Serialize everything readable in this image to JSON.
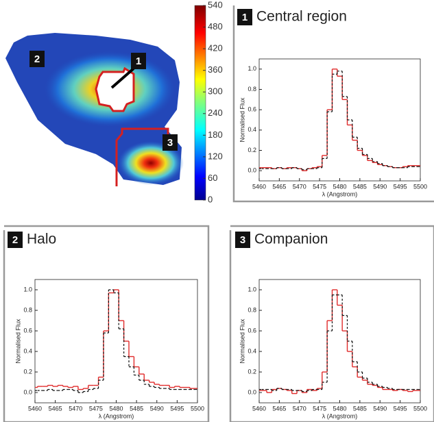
{
  "chart_data": [
    {
      "type": "heatmap",
      "colormap": "jet",
      "colorbar": {
        "lim": [
          0,
          540
        ],
        "ticks": [
          0,
          60,
          120,
          180,
          240,
          300,
          360,
          420,
          480,
          540
        ]
      },
      "region_labels": [
        "1",
        "2",
        "3"
      ],
      "outline_color": "#d42020"
    },
    {
      "type": "step",
      "panel": "1",
      "title": "Central region",
      "xlabel": "λ (Angstrom)",
      "ylabel": "Normalised Flux",
      "x": [
        5460,
        5461.25,
        5462.5,
        5463.75,
        5465,
        5466.25,
        5467.5,
        5468.75,
        5470,
        5471.25,
        5472.5,
        5473.75,
        5475,
        5476.25,
        5477.5,
        5478.75,
        5480,
        5481.25,
        5482.5,
        5483.75,
        5485,
        5486.25,
        5487.5,
        5488.75,
        5490,
        5491.25,
        5492.5,
        5493.75,
        5495,
        5496.25,
        5497.5,
        5498.75,
        5500
      ],
      "series": [
        {
          "color": "#e02a2a",
          "linestyle": "solid",
          "values": [
            0.03,
            0.03,
            0.03,
            0.02,
            0.03,
            0.02,
            0.03,
            0.03,
            0.02,
            0.0,
            0.02,
            0.03,
            0.04,
            0.15,
            0.6,
            1.0,
            0.93,
            0.7,
            0.45,
            0.3,
            0.2,
            0.15,
            0.1,
            0.08,
            0.06,
            0.05,
            0.04,
            0.03,
            0.03,
            0.04,
            0.05,
            0.05,
            0.05
          ]
        },
        {
          "color": "#111111",
          "linestyle": "dashed",
          "values": [
            0.02,
            0.02,
            0.02,
            0.02,
            0.03,
            0.02,
            0.02,
            0.03,
            0.02,
            0.01,
            0.02,
            0.02,
            0.03,
            0.12,
            0.58,
            0.95,
            0.98,
            0.73,
            0.5,
            0.33,
            0.22,
            0.16,
            0.12,
            0.09,
            0.07,
            0.05,
            0.04,
            0.03,
            0.03,
            0.03,
            0.04,
            0.04,
            0.04
          ]
        }
      ],
      "xlim": [
        5460,
        5500
      ],
      "xticks": [
        5460,
        5465,
        5470,
        5475,
        5480,
        5485,
        5490,
        5495,
        5500
      ],
      "ylim": [
        -0.1,
        1.1
      ],
      "yticks": [
        {
          "value": 0,
          "label": "0.0"
        },
        0.2,
        0.4,
        0.6,
        0.8,
        {
          "value": 1,
          "label": "1.0"
        }
      ]
    },
    {
      "type": "step",
      "panel": "2",
      "title": "Halo",
      "xlabel": "λ (Angstrom)",
      "ylabel": "Normalised Flux",
      "x": [
        5460,
        5461.25,
        5462.5,
        5463.75,
        5465,
        5466.25,
        5467.5,
        5468.75,
        5470,
        5471.25,
        5472.5,
        5473.75,
        5475,
        5476.25,
        5477.5,
        5478.75,
        5480,
        5481.25,
        5482.5,
        5483.75,
        5485,
        5486.25,
        5487.5,
        5488.75,
        5490,
        5491.25,
        5492.5,
        5493.75,
        5495,
        5496.25,
        5497.5,
        5498.75,
        5500
      ],
      "series": [
        {
          "color": "#e02a2a",
          "linestyle": "solid",
          "values": [
            0.05,
            0.06,
            0.06,
            0.07,
            0.06,
            0.07,
            0.06,
            0.05,
            0.06,
            0.03,
            0.04,
            0.07,
            0.07,
            0.15,
            0.6,
            0.97,
            1.0,
            0.7,
            0.5,
            0.35,
            0.25,
            0.18,
            0.12,
            0.1,
            0.08,
            0.07,
            0.07,
            0.05,
            0.06,
            0.05,
            0.05,
            0.04,
            0.04
          ]
        },
        {
          "color": "#111111",
          "linestyle": "dashed",
          "values": [
            0.02,
            0.02,
            0.02,
            0.03,
            0.02,
            0.02,
            0.03,
            0.03,
            0.02,
            0.0,
            0.01,
            0.03,
            0.04,
            0.12,
            0.58,
            1.0,
            0.97,
            0.62,
            0.35,
            0.25,
            0.17,
            0.12,
            0.08,
            0.06,
            0.05,
            0.04,
            0.04,
            0.03,
            0.03,
            0.03,
            0.03,
            0.03,
            0.03
          ]
        }
      ],
      "xlim": [
        5460,
        5500
      ],
      "xticks": [
        5460,
        5465,
        5470,
        5475,
        5480,
        5485,
        5490,
        5495,
        5500
      ],
      "ylim": [
        -0.1,
        1.1
      ],
      "yticks": [
        {
          "value": 0,
          "label": "0.0"
        },
        0.2,
        0.4,
        0.6,
        0.8,
        {
          "value": 1,
          "label": "1.0"
        }
      ]
    },
    {
      "type": "step",
      "panel": "3",
      "title": "Companion",
      "xlabel": "λ (Angstrom)",
      "ylabel": "Normalised Flux",
      "x": [
        5460,
        5461.25,
        5462.5,
        5463.75,
        5465,
        5466.25,
        5467.5,
        5468.75,
        5470,
        5471.25,
        5472.5,
        5473.75,
        5475,
        5476.25,
        5477.5,
        5478.75,
        5480,
        5481.25,
        5482.5,
        5483.75,
        5485,
        5486.25,
        5487.5,
        5488.75,
        5490,
        5491.25,
        5492.5,
        5493.75,
        5495,
        5496.25,
        5497.5,
        5498.75,
        5500
      ],
      "series": [
        {
          "color": "#e02a2a",
          "linestyle": "solid",
          "values": [
            0.02,
            0.02,
            0.0,
            0.03,
            0.04,
            0.03,
            0.02,
            -0.01,
            0.02,
            0.0,
            0.03,
            0.02,
            0.04,
            0.2,
            0.7,
            1.0,
            0.85,
            0.6,
            0.4,
            0.25,
            0.15,
            0.12,
            0.08,
            0.07,
            0.05,
            0.03,
            0.03,
            0.02,
            0.03,
            0.02,
            0.01,
            0.02,
            0.02
          ]
        },
        {
          "color": "#111111",
          "linestyle": "dashed",
          "values": [
            0.03,
            0.03,
            0.03,
            0.02,
            0.04,
            0.03,
            0.03,
            0.02,
            0.02,
            0.01,
            0.02,
            0.03,
            0.03,
            0.1,
            0.6,
            0.95,
            0.95,
            0.75,
            0.5,
            0.3,
            0.2,
            0.14,
            0.1,
            0.08,
            0.06,
            0.05,
            0.04,
            0.03,
            0.03,
            0.03,
            0.03,
            0.03,
            0.03
          ]
        }
      ],
      "xlim": [
        5460,
        5500
      ],
      "xticks": [
        5460,
        5465,
        5470,
        5475,
        5480,
        5485,
        5490,
        5495,
        5500
      ],
      "ylim": [
        -0.1,
        1.1
      ],
      "yticks": [
        {
          "value": 0,
          "label": "0.0"
        },
        0.2,
        0.4,
        0.6,
        0.8,
        {
          "value": 1,
          "label": "1.0"
        }
      ]
    }
  ]
}
